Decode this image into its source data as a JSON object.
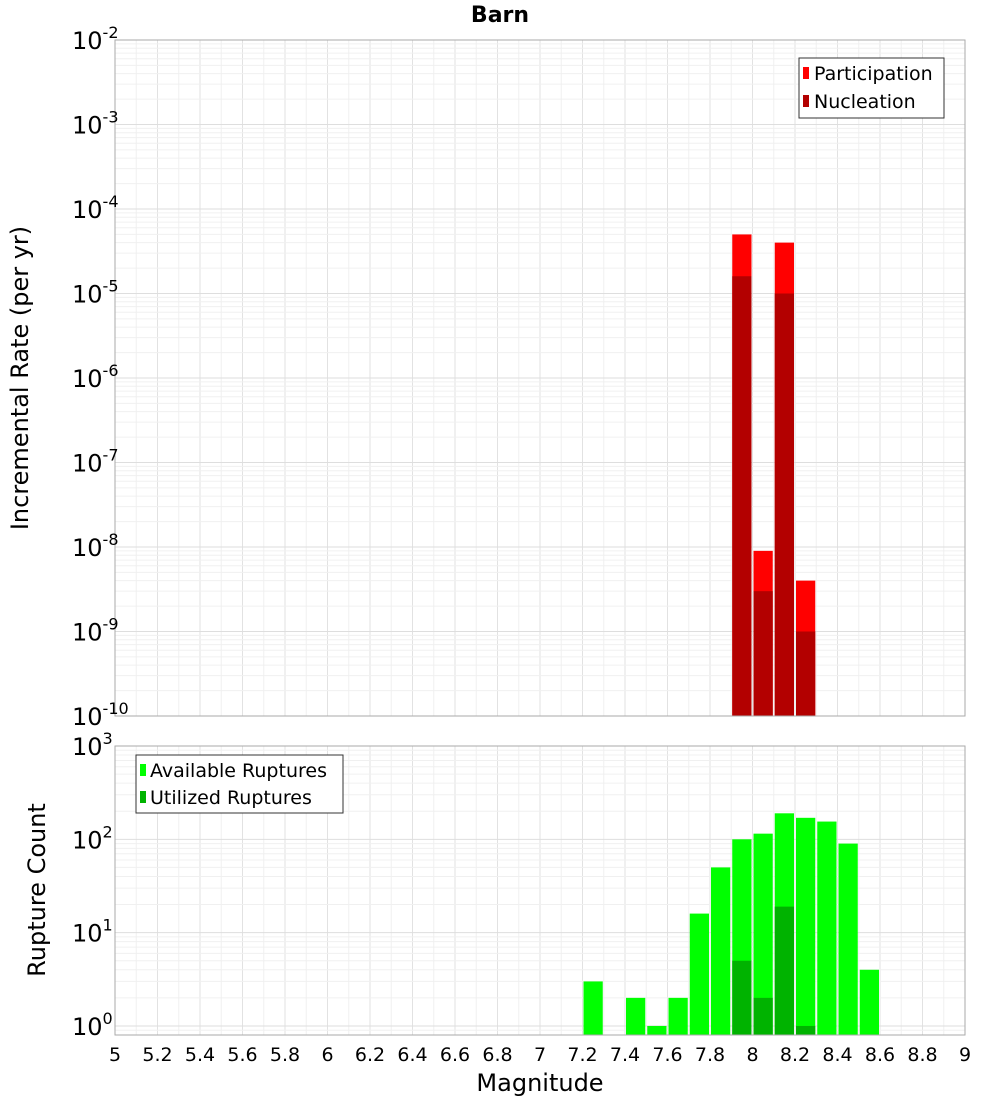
{
  "chart_data": [
    {
      "type": "bar",
      "title": "Barn",
      "xlabel": "Magnitude",
      "ylabel": "Incremental Rate (per yr)",
      "xlim": [
        5,
        9
      ],
      "ylim": [
        1e-10,
        0.01
      ],
      "y_scale": "log",
      "grid": true,
      "legend_position": "top-right",
      "bar_width": 0.1,
      "y_ticks": [
        {
          "base": "10",
          "exp": "-10",
          "value": 1e-10
        },
        {
          "base": "10",
          "exp": "-9",
          "value": 1e-09
        },
        {
          "base": "10",
          "exp": "-8",
          "value": 1e-08
        },
        {
          "base": "10",
          "exp": "-7",
          "value": 1e-07
        },
        {
          "base": "10",
          "exp": "-6",
          "value": 1e-06
        },
        {
          "base": "10",
          "exp": "-5",
          "value": 1e-05
        },
        {
          "base": "10",
          "exp": "-4",
          "value": 0.0001
        },
        {
          "base": "10",
          "exp": "-3",
          "value": 0.001
        },
        {
          "base": "10",
          "exp": "-2",
          "value": 0.01
        }
      ],
      "series": [
        {
          "name": "Participation",
          "color": "#ff0000",
          "x": [
            7.95,
            8.05,
            8.15,
            8.25
          ],
          "values": [
            5e-05,
            9e-09,
            4e-05,
            4e-09
          ]
        },
        {
          "name": "Nucleation",
          "color": "#b30000",
          "x": [
            7.95,
            8.05,
            8.15,
            8.25
          ],
          "values": [
            1.6e-05,
            3e-09,
            1e-05,
            1e-09
          ]
        }
      ]
    },
    {
      "type": "bar",
      "xlabel": "Magnitude",
      "ylabel": "Rupture Count",
      "xlim": [
        5,
        9
      ],
      "ylim": [
        0.8,
        1000
      ],
      "y_scale": "log",
      "grid": true,
      "legend_position": "top-left",
      "bar_width": 0.1,
      "x_ticks": [
        "5",
        "5.2",
        "5.4",
        "5.6",
        "5.8",
        "6",
        "6.2",
        "6.4",
        "6.6",
        "6.8",
        "7",
        "7.2",
        "7.4",
        "7.6",
        "7.8",
        "8",
        "8.2",
        "8.4",
        "8.6",
        "8.8",
        "9"
      ],
      "y_ticks": [
        {
          "base": "10",
          "exp": "0",
          "value": 1
        },
        {
          "base": "10",
          "exp": "1",
          "value": 10
        },
        {
          "base": "10",
          "exp": "2",
          "value": 100
        },
        {
          "base": "10",
          "exp": "3",
          "value": 1000
        }
      ],
      "series": [
        {
          "name": "Available Ruptures",
          "color": "#00ff00",
          "x": [
            7.25,
            7.45,
            7.55,
            7.65,
            7.75,
            7.85,
            7.95,
            8.05,
            8.15,
            8.25,
            8.35,
            8.45,
            8.55
          ],
          "values": [
            3,
            2,
            1,
            2,
            16,
            50,
            100,
            115,
            190,
            170,
            155,
            90,
            4
          ]
        },
        {
          "name": "Utilized Ruptures",
          "color": "#00b300",
          "x": [
            7.95,
            8.05,
            8.15,
            8.25
          ],
          "values": [
            5,
            2,
            19,
            1
          ]
        }
      ]
    }
  ]
}
